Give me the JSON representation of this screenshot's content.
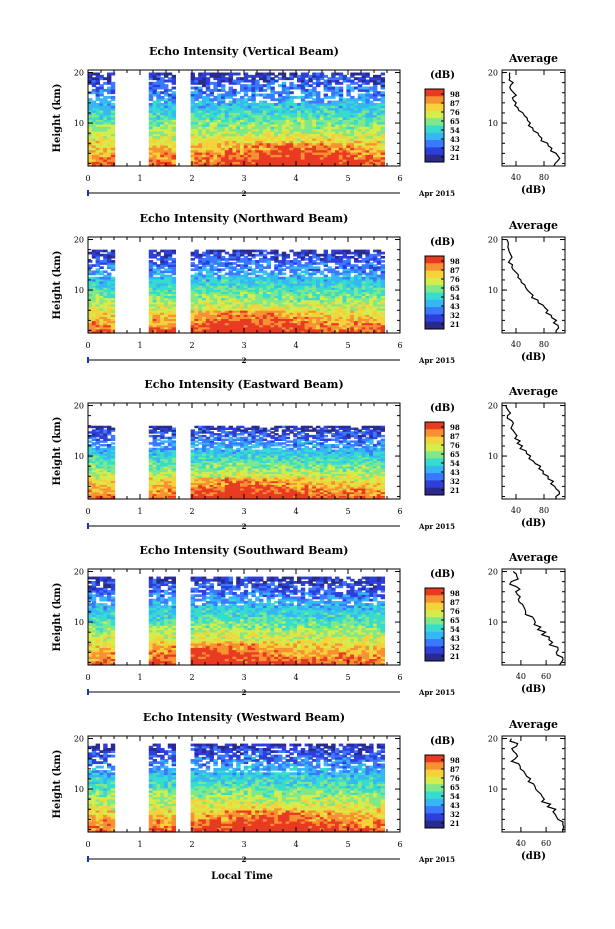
{
  "figure": {
    "xlabel": "Local Time",
    "date_label": "Apr 2015",
    "day_label": "2",
    "profile_title": "Average",
    "profile_xlabel": "(dB)",
    "colorbar_unit": "(dB)"
  },
  "colors": {
    "scale": [
      "#2a2a8c",
      "#2e3fd9",
      "#3a78ff",
      "#36b6f5",
      "#37dccd",
      "#7ee88a",
      "#d4ec4c",
      "#f5d23a",
      "#f79133",
      "#e83b22"
    ]
  },
  "chart_data": [
    {
      "type": "heatmap",
      "title": "Echo Intensity (Vertical Beam)",
      "ylabel": "Height (km)",
      "xlim": [
        0,
        6
      ],
      "ylim": [
        1.5,
        20.5
      ],
      "xticks": [
        "0",
        "1",
        "2",
        "3",
        "4",
        "5",
        "6"
      ],
      "yticks": [
        "10",
        "20"
      ],
      "colorbar_ticks": [
        "98",
        "87",
        "76",
        "65",
        "54",
        "43",
        "32",
        "21"
      ],
      "data_gaps": [
        [
          0.5,
          1.15
        ],
        [
          1.65,
          1.95
        ]
      ],
      "data_end": 5.7,
      "top_height": 20,
      "surface_peak_time": 4.0,
      "profile": {
        "xticks": [
          "40",
          "80"
        ],
        "xlim": [
          20,
          110
        ],
        "heights": [
          20,
          19,
          18,
          17,
          16,
          15,
          14,
          13,
          12,
          11,
          10,
          9,
          8,
          7,
          6,
          5,
          4,
          3,
          2
        ],
        "values": [
          32,
          30,
          34,
          31,
          38,
          36,
          40,
          44,
          50,
          56,
          60,
          66,
          72,
          78,
          86,
          92,
          98,
          102,
          96
        ]
      }
    },
    {
      "type": "heatmap",
      "title": "Echo Intensity (Northward Beam)",
      "ylabel": "Height (km)",
      "xlim": [
        0,
        6
      ],
      "ylim": [
        1.5,
        20.5
      ],
      "xticks": [
        "0",
        "1",
        "2",
        "3",
        "4",
        "5",
        "6"
      ],
      "yticks": [
        "10",
        "20"
      ],
      "colorbar_ticks": [
        "98",
        "87",
        "76",
        "65",
        "54",
        "43",
        "32",
        "21"
      ],
      "data_gaps": [
        [
          0.5,
          1.15
        ],
        [
          1.65,
          1.95
        ]
      ],
      "data_end": 5.7,
      "top_height": 18,
      "surface_peak_time": 3.0,
      "profile": {
        "xticks": [
          "40",
          "80"
        ],
        "xlim": [
          20,
          110
        ],
        "heights": [
          20,
          19,
          18,
          17,
          16,
          15,
          14,
          13,
          12,
          11,
          10,
          9,
          8,
          7,
          6,
          5,
          4,
          3,
          2
        ],
        "values": [
          28,
          30,
          29,
          33,
          31,
          35,
          38,
          42,
          46,
          52,
          58,
          64,
          72,
          80,
          84,
          90,
          96,
          100,
          98
        ]
      }
    },
    {
      "type": "heatmap",
      "title": "Echo Intensity (Eastward Beam)",
      "ylabel": "Height (km)",
      "xlim": [
        0,
        6
      ],
      "ylim": [
        1.5,
        20.5
      ],
      "xticks": [
        "0",
        "1",
        "2",
        "3",
        "4",
        "5",
        "6"
      ],
      "yticks": [
        "10",
        "20"
      ],
      "colorbar_ticks": [
        "98",
        "87",
        "76",
        "65",
        "54",
        "43",
        "32",
        "21"
      ],
      "data_gaps": [
        [
          0.5,
          1.15
        ],
        [
          1.65,
          1.95
        ]
      ],
      "data_end": 5.7,
      "top_height": 16,
      "surface_peak_time": 3.0,
      "profile": {
        "xticks": [
          "40",
          "80"
        ],
        "xlim": [
          20,
          110
        ],
        "heights": [
          20,
          19,
          18,
          17,
          16,
          15,
          14,
          13,
          12,
          11,
          10,
          9,
          8,
          7,
          6,
          5,
          4,
          3,
          2
        ],
        "values": [
          27,
          31,
          30,
          34,
          33,
          37,
          40,
          44,
          48,
          54,
          60,
          66,
          74,
          80,
          86,
          92,
          96,
          100,
          97
        ]
      }
    },
    {
      "type": "heatmap",
      "title": "Echo Intensity (Southward Beam)",
      "ylabel": "Height (km)",
      "xlim": [
        0,
        6
      ],
      "ylim": [
        1.5,
        20.5
      ],
      "xticks": [
        "0",
        "1",
        "2",
        "3",
        "4",
        "5",
        "6"
      ],
      "yticks": [
        "10",
        "20"
      ],
      "colorbar_ticks": [
        "98",
        "87",
        "76",
        "65",
        "54",
        "43",
        "32",
        "21"
      ],
      "data_gaps": [
        [
          0.5,
          1.15
        ],
        [
          1.65,
          1.95
        ]
      ],
      "data_end": 5.7,
      "top_height": 19,
      "surface_peak_time": 2.5,
      "profile": {
        "xticks": [
          "40",
          "60"
        ],
        "xlim": [
          25,
          75
        ],
        "heights": [
          20,
          19,
          18,
          17,
          16,
          15,
          14,
          13,
          12,
          11,
          10,
          9,
          8,
          7,
          6,
          5,
          4,
          3,
          2
        ],
        "values": [
          34,
          36,
          33,
          37,
          35,
          38,
          40,
          42,
          45,
          48,
          51,
          54,
          58,
          62,
          65,
          68,
          70,
          72,
          73
        ]
      }
    },
    {
      "type": "heatmap",
      "title": "Echo Intensity (Westward Beam)",
      "ylabel": "Height (km)",
      "xlim": [
        0,
        6
      ],
      "ylim": [
        1.5,
        20.5
      ],
      "xticks": [
        "0",
        "1",
        "2",
        "3",
        "4",
        "5",
        "6"
      ],
      "yticks": [
        "10",
        "20"
      ],
      "colorbar_ticks": [
        "98",
        "87",
        "76",
        "65",
        "54",
        "43",
        "32",
        "21"
      ],
      "data_gaps": [
        [
          0.5,
          1.15
        ],
        [
          1.65,
          1.95
        ]
      ],
      "data_end": 5.7,
      "top_height": 19,
      "surface_peak_time": 3.5,
      "profile": {
        "xticks": [
          "40",
          "60"
        ],
        "xlim": [
          25,
          75
        ],
        "heights": [
          20,
          19,
          18,
          17,
          16,
          15,
          14,
          13,
          12,
          11,
          10,
          9,
          8,
          7,
          6,
          5,
          4,
          3,
          2
        ],
        "values": [
          33,
          37,
          34,
          36,
          35,
          39,
          41,
          43,
          46,
          49,
          52,
          55,
          58,
          62,
          66,
          69,
          71,
          73,
          72
        ]
      }
    }
  ]
}
